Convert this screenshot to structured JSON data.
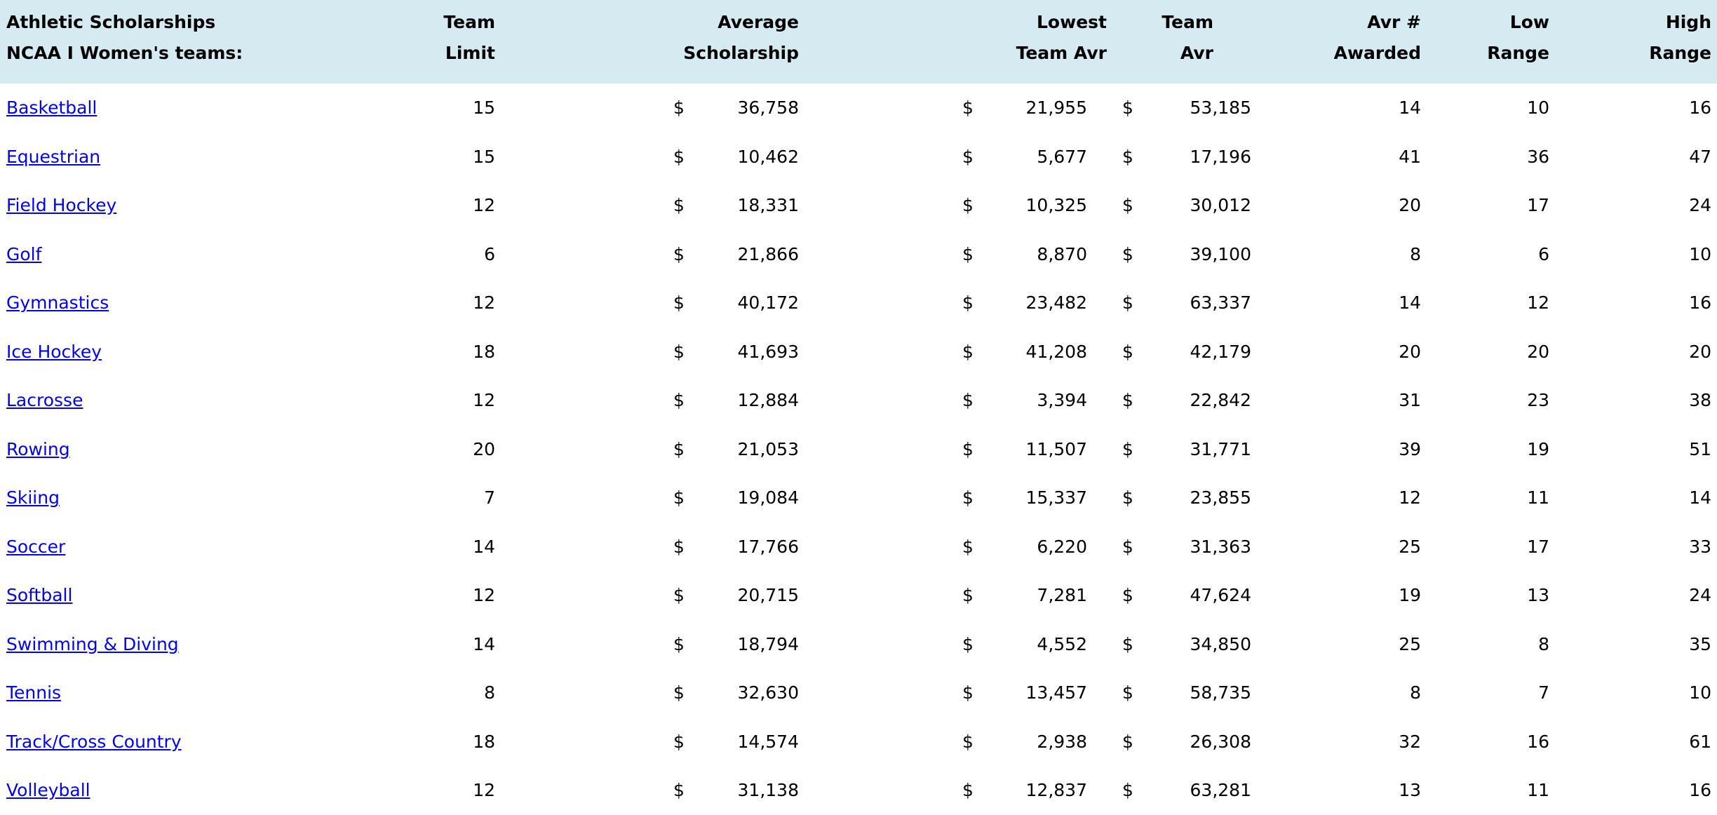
{
  "table": {
    "currency_symbol": "$",
    "header": {
      "title_line1": "Athletic Scholarships",
      "title_line2": "NCAA I Women's teams:",
      "columns": [
        {
          "line1": "Team",
          "line2": "Limit"
        },
        {
          "line1": "Average",
          "line2": "Scholarship"
        },
        {
          "line1": "Lowest",
          "line2": "Team Avr"
        },
        {
          "line1": "Team",
          "line2": "Avr"
        },
        {
          "line1": "Avr #",
          "line2": "Awarded"
        },
        {
          "line1": "Low",
          "line2": "Range"
        },
        {
          "line1": "High",
          "line2": "Range"
        }
      ]
    },
    "rows": [
      {
        "sport": "Basketball",
        "limit": "15",
        "avg": "36,758",
        "lowest": "21,955",
        "team_avr": "53,185",
        "awarded": "14",
        "low": "10",
        "high": "16"
      },
      {
        "sport": "Equestrian",
        "limit": "15",
        "avg": "10,462",
        "lowest": "5,677",
        "team_avr": "17,196",
        "awarded": "41",
        "low": "36",
        "high": "47"
      },
      {
        "sport": "Field Hockey",
        "limit": "12",
        "avg": "18,331",
        "lowest": "10,325",
        "team_avr": "30,012",
        "awarded": "20",
        "low": "17",
        "high": "24"
      },
      {
        "sport": "Golf",
        "limit": "6",
        "avg": "21,866",
        "lowest": "8,870",
        "team_avr": "39,100",
        "awarded": "8",
        "low": "6",
        "high": "10"
      },
      {
        "sport": "Gymnastics",
        "limit": "12",
        "avg": "40,172",
        "lowest": "23,482",
        "team_avr": "63,337",
        "awarded": "14",
        "low": "12",
        "high": "16"
      },
      {
        "sport": "Ice Hockey",
        "limit": "18",
        "avg": "41,693",
        "lowest": "41,208",
        "team_avr": "42,179",
        "awarded": "20",
        "low": "20",
        "high": "20"
      },
      {
        "sport": "Lacrosse",
        "limit": "12",
        "avg": "12,884",
        "lowest": "3,394",
        "team_avr": "22,842",
        "awarded": "31",
        "low": "23",
        "high": "38"
      },
      {
        "sport": "Rowing",
        "limit": "20",
        "avg": "21,053",
        "lowest": "11,507",
        "team_avr": "31,771",
        "awarded": "39",
        "low": "19",
        "high": "51"
      },
      {
        "sport": "Skiing",
        "limit": "7",
        "avg": "19,084",
        "lowest": "15,337",
        "team_avr": "23,855",
        "awarded": "12",
        "low": "11",
        "high": "14"
      },
      {
        "sport": "Soccer",
        "limit": "14",
        "avg": "17,766",
        "lowest": "6,220",
        "team_avr": "31,363",
        "awarded": "25",
        "low": "17",
        "high": "33"
      },
      {
        "sport": "Softball",
        "limit": "12",
        "avg": "20,715",
        "lowest": "7,281",
        "team_avr": "47,624",
        "awarded": "19",
        "low": "13",
        "high": "24"
      },
      {
        "sport": "Swimming & Diving",
        "limit": "14",
        "avg": "18,794",
        "lowest": "4,552",
        "team_avr": "34,850",
        "awarded": "25",
        "low": "8",
        "high": "35"
      },
      {
        "sport": "Tennis",
        "limit": "8",
        "avg": "32,630",
        "lowest": "13,457",
        "team_avr": "58,735",
        "awarded": "8",
        "low": "7",
        "high": "10"
      },
      {
        "sport": "Track/Cross Country",
        "limit": "18",
        "avg": "14,574",
        "lowest": "2,938",
        "team_avr": "26,308",
        "awarded": "32",
        "low": "16",
        "high": "61"
      },
      {
        "sport": "Volleyball",
        "limit": "12",
        "avg": "31,138",
        "lowest": "12,837",
        "team_avr": "63,281",
        "awarded": "13",
        "low": "11",
        "high": "16"
      }
    ]
  },
  "colors": {
    "header_bg": "#d6eaf2",
    "link": "#0000ee",
    "text": "#000000",
    "background": "#ffffff"
  }
}
